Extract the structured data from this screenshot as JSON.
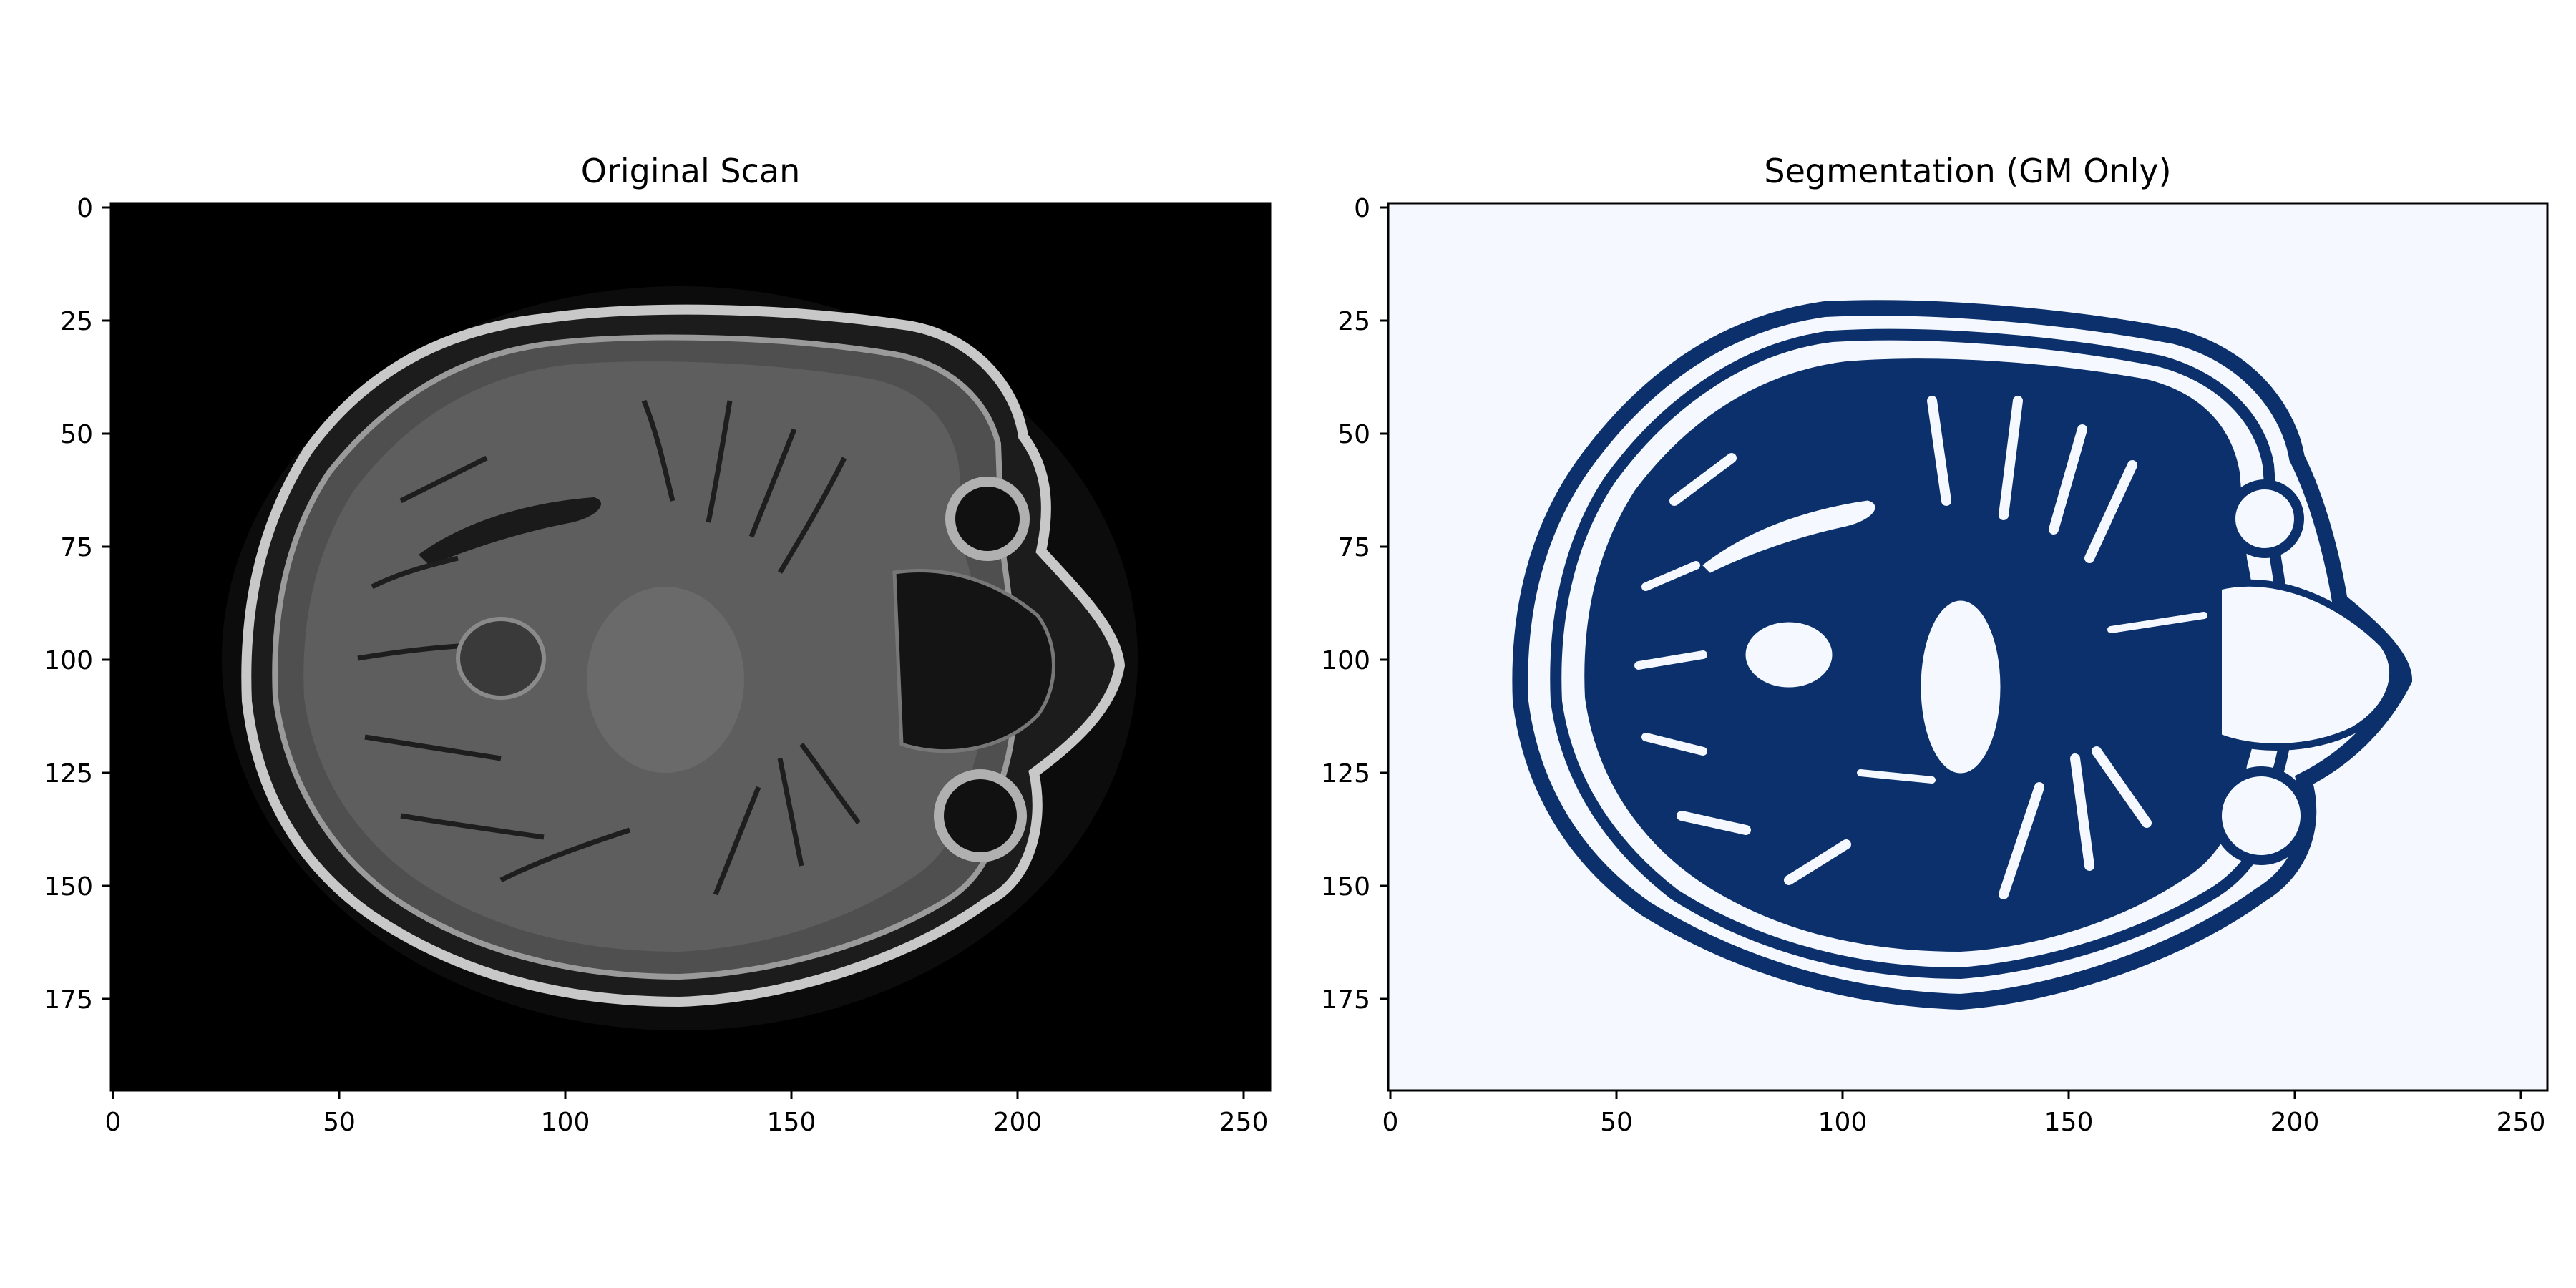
{
  "panels": [
    {
      "title": "Original Scan",
      "image_kind": "grayscale MRI axial brain slice",
      "colors": {
        "background": "#000000",
        "tissue": "#5c5c5c",
        "bright": "#d8d8d8",
        "dark": "#1a1a1a"
      },
      "xticks": [
        "0",
        "50",
        "100",
        "150",
        "200",
        "250"
      ],
      "yticks": [
        "0",
        "25",
        "50",
        "75",
        "100",
        "125",
        "150",
        "175"
      ]
    },
    {
      "title": "Segmentation (GM Only)",
      "image_kind": "binary gray-matter mask, Blues colormap",
      "colors": {
        "background": "#f5f9ff",
        "mask": "#0b306b"
      },
      "xticks": [
        "0",
        "50",
        "100",
        "150",
        "200",
        "250"
      ],
      "yticks": [
        "0",
        "25",
        "50",
        "75",
        "100",
        "125",
        "150",
        "175"
      ]
    }
  ],
  "image_extent": {
    "x": [
      0,
      256
    ],
    "y": [
      196,
      0
    ]
  }
}
